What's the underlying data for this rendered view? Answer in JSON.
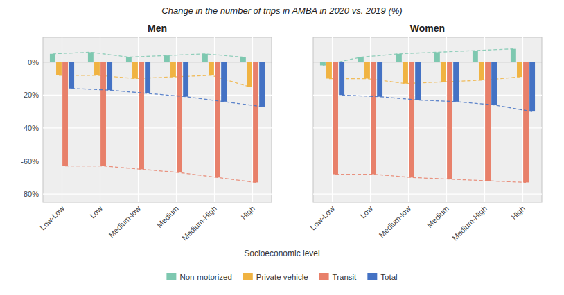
{
  "chart_data": [
    {
      "type": "bar",
      "title": "Change in the number of trips in AMBA in 2020 vs. 2019 (%)",
      "subtitle": "Men",
      "xlabel": "Socioeconomic level",
      "categories": [
        "Low-Low",
        "Low",
        "Medium-low",
        "Medium",
        "Medium-High",
        "High"
      ],
      "series": [
        {
          "name": "Non-motorized",
          "color": "#7ec8b0",
          "line_style": "dashed",
          "values": [
            5,
            6,
            3,
            4,
            5,
            3
          ]
        },
        {
          "name": "Private vehicle",
          "color": "#f0b342",
          "line_style": "dashed",
          "values": [
            -8,
            -8,
            -10,
            -9,
            -8,
            -15
          ]
        },
        {
          "name": "Transit",
          "color": "#e8806a",
          "line_style": "dashed",
          "values": [
            -63,
            -63,
            -65,
            -67,
            -70,
            -73
          ]
        },
        {
          "name": "Total",
          "color": "#4472c4",
          "line_style": "dashed",
          "values": [
            -16,
            -17,
            -19,
            -21,
            -24,
            -27
          ]
        }
      ],
      "ylim": [
        -85,
        15
      ],
      "yticks": [
        {
          "value": 0,
          "label": "0%"
        },
        {
          "value": -20,
          "label": "-20%"
        },
        {
          "value": -40,
          "label": "-40%"
        },
        {
          "value": -60,
          "label": "-60%"
        },
        {
          "value": -80,
          "label": "-80%"
        }
      ],
      "grid": true,
      "legend": "bottom"
    },
    {
      "type": "bar",
      "subtitle": "Women",
      "categories": [
        "Low-Low",
        "Low",
        "Medium-low",
        "Medium",
        "Medium-High",
        "High"
      ],
      "series": [
        {
          "color": "#7ec8b0",
          "line_style": "dashed",
          "values": [
            -2,
            3,
            5,
            6,
            7,
            8
          ]
        },
        {
          "color": "#f0b342",
          "line_style": "dashed",
          "values": [
            -10,
            -10,
            -13,
            -12,
            -11,
            -9
          ]
        },
        {
          "color": "#e8806a",
          "line_style": "dashed",
          "values": [
            -68,
            -68,
            -70,
            -71,
            -72,
            -73
          ]
        },
        {
          "color": "#4472c4",
          "line_style": "dashed",
          "values": [
            -20,
            -21,
            -23,
            -24,
            -26,
            -30
          ]
        }
      ],
      "ylim": [
        -85,
        15
      ],
      "yticks": [
        0,
        -20,
        -40,
        -60,
        -80
      ],
      "grid": true,
      "tick_labels": "x"
    }
  ]
}
